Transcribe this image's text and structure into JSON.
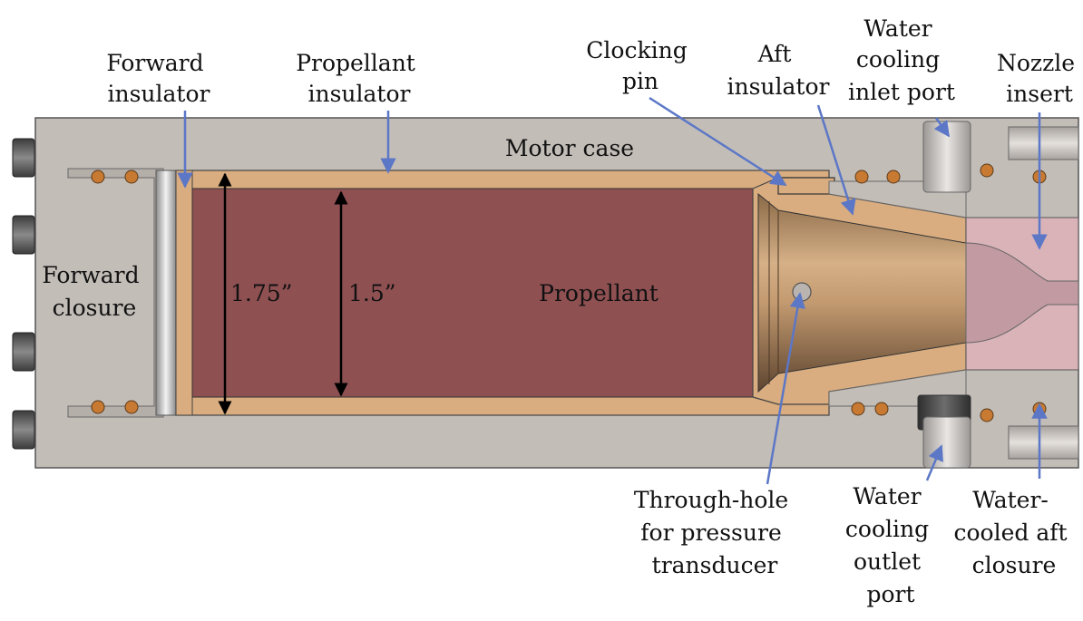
{
  "labels": {
    "forward_insulator": [
      "Forward",
      "insulator"
    ],
    "propellant_insulator": [
      "Propellant",
      "insulator"
    ],
    "clocking_pin": [
      "Clocking",
      "pin"
    ],
    "aft_insulator": [
      "Aft",
      "insulator"
    ],
    "water_inlet": [
      "Water",
      "cooling",
      "inlet port"
    ],
    "nozzle_insert": [
      "Nozzle",
      "insert"
    ],
    "motor_case": "Motor case",
    "forward_closure": [
      "Forward",
      "closure"
    ],
    "propellant": "Propellant",
    "through_hole": [
      "Through-hole",
      "for pressure",
      "transducer"
    ],
    "water_outlet": [
      "Water",
      "cooling",
      "outlet",
      "port"
    ],
    "water_cooled_aft_closure": [
      "Water-",
      "cooled aft",
      "closure"
    ]
  },
  "dimensions": {
    "outer_diameter": "1.75”",
    "inner_diameter": "1.5”"
  },
  "colors": {
    "case": "#c3bdb8",
    "insulator": "#d9ad80",
    "propellant": "#8f5052",
    "nozzle_insert": "#d9b3b8",
    "callout": "#5b77c6",
    "oring": "#c87a32"
  }
}
